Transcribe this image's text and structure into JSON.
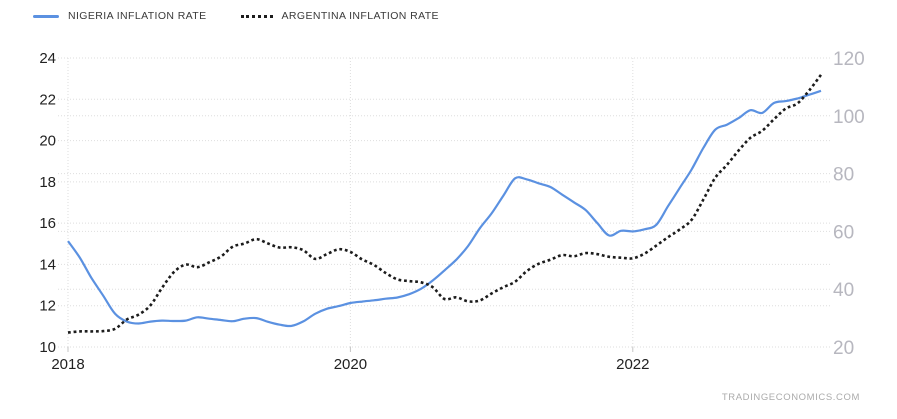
{
  "legend": [
    {
      "label": "NIGERIA INFLATION RATE",
      "color": "#5b91e1",
      "style": "solid"
    },
    {
      "label": "ARGENTINA INFLATION RATE",
      "color": "#1c1c1c",
      "style": "dotted"
    }
  ],
  "attribution": "TRADINGECONOMICS.COM",
  "colors": {
    "grid": "#dedede",
    "axis_left_text": "#222222",
    "axis_right_text": "#b7b7bf",
    "year_text": "#222222",
    "tick_stub": "#c5c5c5",
    "background": "#ffffff"
  },
  "chart_data": {
    "type": "line",
    "x_interval": "monthly",
    "x_start": "2018-01",
    "x_end": "2023-05",
    "x_ticks": [
      {
        "label": "2018",
        "month_index": 0
      },
      {
        "label": "2020",
        "month_index": 24
      },
      {
        "label": "2022",
        "month_index": 48
      }
    ],
    "left_axis": {
      "min": 10,
      "max": 24,
      "ticks": [
        24,
        22,
        20,
        18,
        16,
        14,
        12,
        10
      ]
    },
    "right_axis": {
      "min": 20,
      "max": 120,
      "ticks": [
        120,
        100,
        80,
        60,
        40,
        20
      ]
    },
    "grid": true,
    "legend_position": "top-left",
    "series": [
      {
        "name": "NIGERIA INFLATION RATE",
        "axis": "left",
        "color": "#5b91e1",
        "line_style": "solid",
        "values": [
          15.13,
          14.33,
          13.34,
          12.48,
          11.61,
          11.23,
          11.14,
          11.23,
          11.28,
          11.26,
          11.28,
          11.44,
          11.37,
          11.31,
          11.25,
          11.37,
          11.4,
          11.22,
          11.08,
          11.02,
          11.24,
          11.61,
          11.85,
          11.98,
          12.13,
          12.2,
          12.26,
          12.34,
          12.4,
          12.56,
          12.82,
          13.22,
          13.71,
          14.23,
          14.89,
          15.75,
          16.47,
          17.33,
          18.17,
          18.12,
          17.93,
          17.75,
          17.38,
          17.01,
          16.63,
          15.99,
          15.4,
          15.63,
          15.6,
          15.7,
          15.92,
          16.82,
          17.71,
          18.6,
          19.64,
          20.52,
          20.77,
          21.09,
          21.47,
          21.34,
          21.82,
          21.91,
          22.04,
          22.22,
          22.41
        ]
      },
      {
        "name": "ARGENTINA INFLATION RATE",
        "axis": "right",
        "color": "#1c1c1c",
        "line_style": "dotted",
        "values": [
          25.0,
          25.4,
          25.4,
          25.5,
          26.3,
          29.5,
          31.2,
          34.4,
          40.5,
          45.9,
          48.5,
          47.6,
          49.3,
          51.3,
          54.7,
          55.8,
          57.3,
          55.8,
          54.4,
          54.5,
          53.5,
          50.5,
          52.1,
          53.8,
          52.9,
          50.3,
          48.4,
          45.6,
          43.4,
          42.8,
          42.4,
          40.7,
          36.6,
          37.2,
          35.8,
          36.1,
          38.5,
          40.7,
          42.6,
          46.3,
          48.8,
          50.2,
          51.8,
          51.4,
          52.5,
          52.1,
          51.2,
          50.9,
          50.7,
          52.3,
          55.1,
          58.0,
          60.7,
          64.0,
          71.0,
          78.5,
          83.0,
          88.0,
          92.4,
          94.8,
          98.8,
          102.5,
          104.3,
          108.8,
          114.2
        ]
      }
    ]
  }
}
